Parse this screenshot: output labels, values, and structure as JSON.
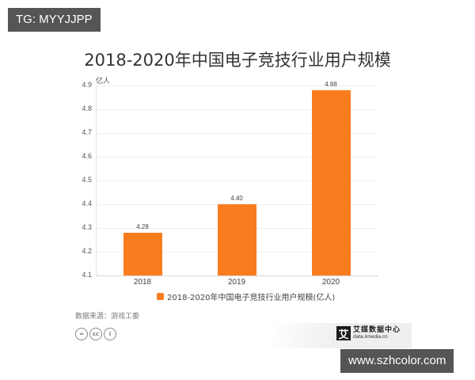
{
  "watermarks": {
    "top_tag": "TG: MYYJJPP",
    "bottom_tag": "www.szhcolor.com"
  },
  "chart_data": {
    "type": "bar",
    "title": "2018-2020年中国电子竞技行业用户规模",
    "xlabel": "",
    "ylabel": "亿人",
    "categories": [
      "2018",
      "2019",
      "2020"
    ],
    "series": [
      {
        "name": "2018-2020年中国电子竞技行业用户规模(亿人)",
        "values": [
          4.28,
          4.4,
          4.88
        ],
        "color": "#f97c1f"
      }
    ],
    "value_labels": [
      "4.28",
      "4.40",
      "4.88"
    ],
    "ylim": [
      4.1,
      4.9
    ],
    "yticks": [
      "4.9",
      "4.8",
      "4.7",
      "4.6",
      "4.5",
      "4.4",
      "4.3",
      "4.2",
      "4.1"
    ],
    "grid": true,
    "legend_position": "bottom"
  },
  "footer": {
    "source": "数据来源：游戏工委",
    "license_icons": [
      "nd-icon",
      "cc-icon",
      "by-icon"
    ],
    "license_glyphs": [
      "=",
      "cc",
      "i"
    ],
    "brand_logo_char": "艾",
    "brand_name": "艾媒数据中心",
    "brand_url": "data.iimedia.cn"
  }
}
